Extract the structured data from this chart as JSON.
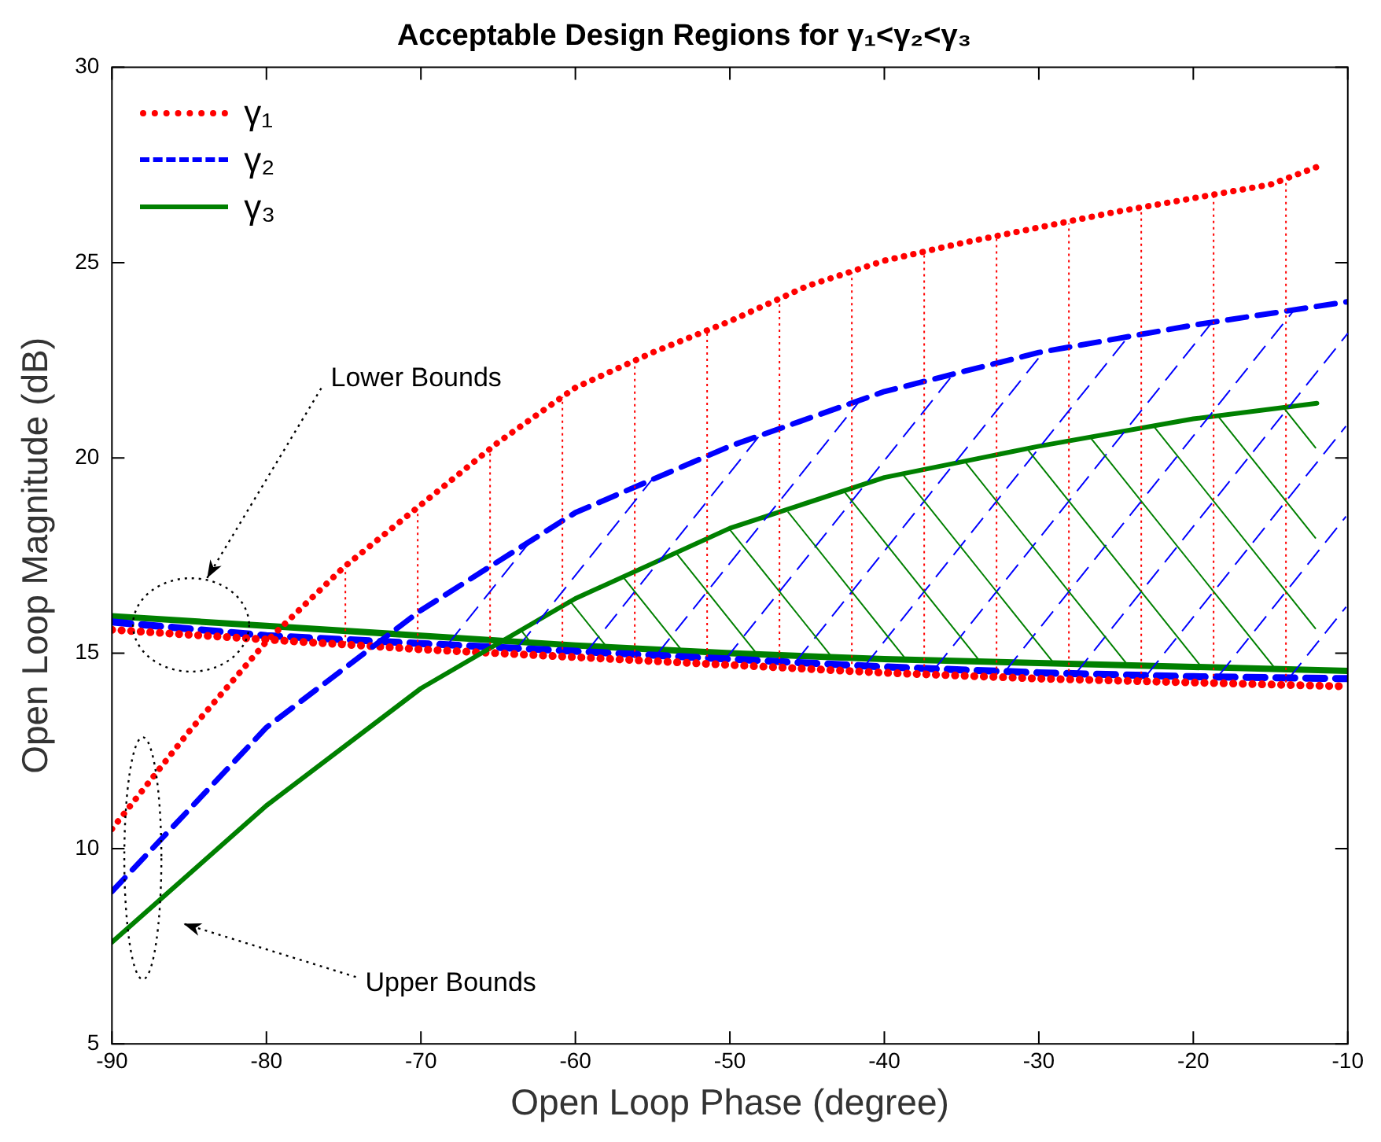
{
  "chart_data": {
    "type": "line",
    "title": "Acceptable Design Regions for γ₁<γ₂<γ₃",
    "xlabel": "Open Loop Phase (degree)",
    "ylabel": "Open Loop Magnitude (dB)",
    "xlim": [
      -90,
      -10
    ],
    "xticks": [
      -90,
      -80,
      -70,
      -60,
      -50,
      -40,
      -30,
      -20,
      -10
    ],
    "ylim": [
      5,
      30
    ],
    "yticks": [
      5,
      10,
      15,
      20,
      25,
      30
    ],
    "grid": false,
    "legend": "top left",
    "marker": "none",
    "series": [
      {
        "name": "γ₁",
        "color": "#ff0000",
        "line_style": "dotted",
        "x": [
          -90,
          -85,
          -80,
          -75,
          -70,
          -65,
          -60,
          -55,
          -50,
          -45,
          -40,
          -35,
          -30,
          -25,
          -20,
          -15,
          -12
        ],
        "values": [
          10.5,
          13.0,
          15.3,
          17.2,
          18.8,
          20.4,
          21.8,
          22.7,
          23.5,
          24.4,
          25.05,
          25.5,
          25.9,
          26.3,
          26.65,
          27.0,
          27.45
        ]
      },
      {
        "name": "γ₂",
        "color": "#0000ff",
        "line_style": "dashed",
        "x": [
          -90,
          -80,
          -70,
          -60,
          -50,
          -40,
          -30,
          -20,
          -10
        ],
        "values": [
          8.9,
          13.1,
          16.1,
          18.6,
          20.3,
          21.7,
          22.7,
          23.4,
          24.0
        ]
      },
      {
        "name": "γ₃",
        "color": "#008000",
        "line_style": "solid",
        "x": [
          -90,
          -80,
          -70,
          -60,
          -50,
          -40,
          -30,
          -20,
          -12
        ],
        "values": [
          7.6,
          11.1,
          14.1,
          16.4,
          18.2,
          19.5,
          20.3,
          21.0,
          21.4
        ]
      },
      {
        "color": "#ff0000",
        "line_style": "dotted",
        "x": [
          -90,
          -80,
          -70,
          -60,
          -50,
          -40,
          -30,
          -20,
          -10
        ],
        "values": [
          15.6,
          15.35,
          15.1,
          14.9,
          14.7,
          14.5,
          14.35,
          14.25,
          14.15
        ]
      },
      {
        "color": "#0000ff",
        "line_style": "dashed",
        "x": [
          -90,
          -80,
          -70,
          -60,
          -50,
          -40,
          -30,
          -20,
          -10
        ],
        "values": [
          15.8,
          15.45,
          15.25,
          15.05,
          14.85,
          14.65,
          14.5,
          14.4,
          14.35
        ]
      },
      {
        "color": "#008000",
        "line_style": "solid",
        "x": [
          -90,
          -80,
          -70,
          -60,
          -50,
          -40,
          -30,
          -20,
          -10
        ],
        "values": [
          15.95,
          15.7,
          15.45,
          15.2,
          15.0,
          14.85,
          14.75,
          14.65,
          14.55
        ]
      }
    ],
    "annotations": [
      "Lower Bounds",
      "Upper Bounds"
    ]
  }
}
